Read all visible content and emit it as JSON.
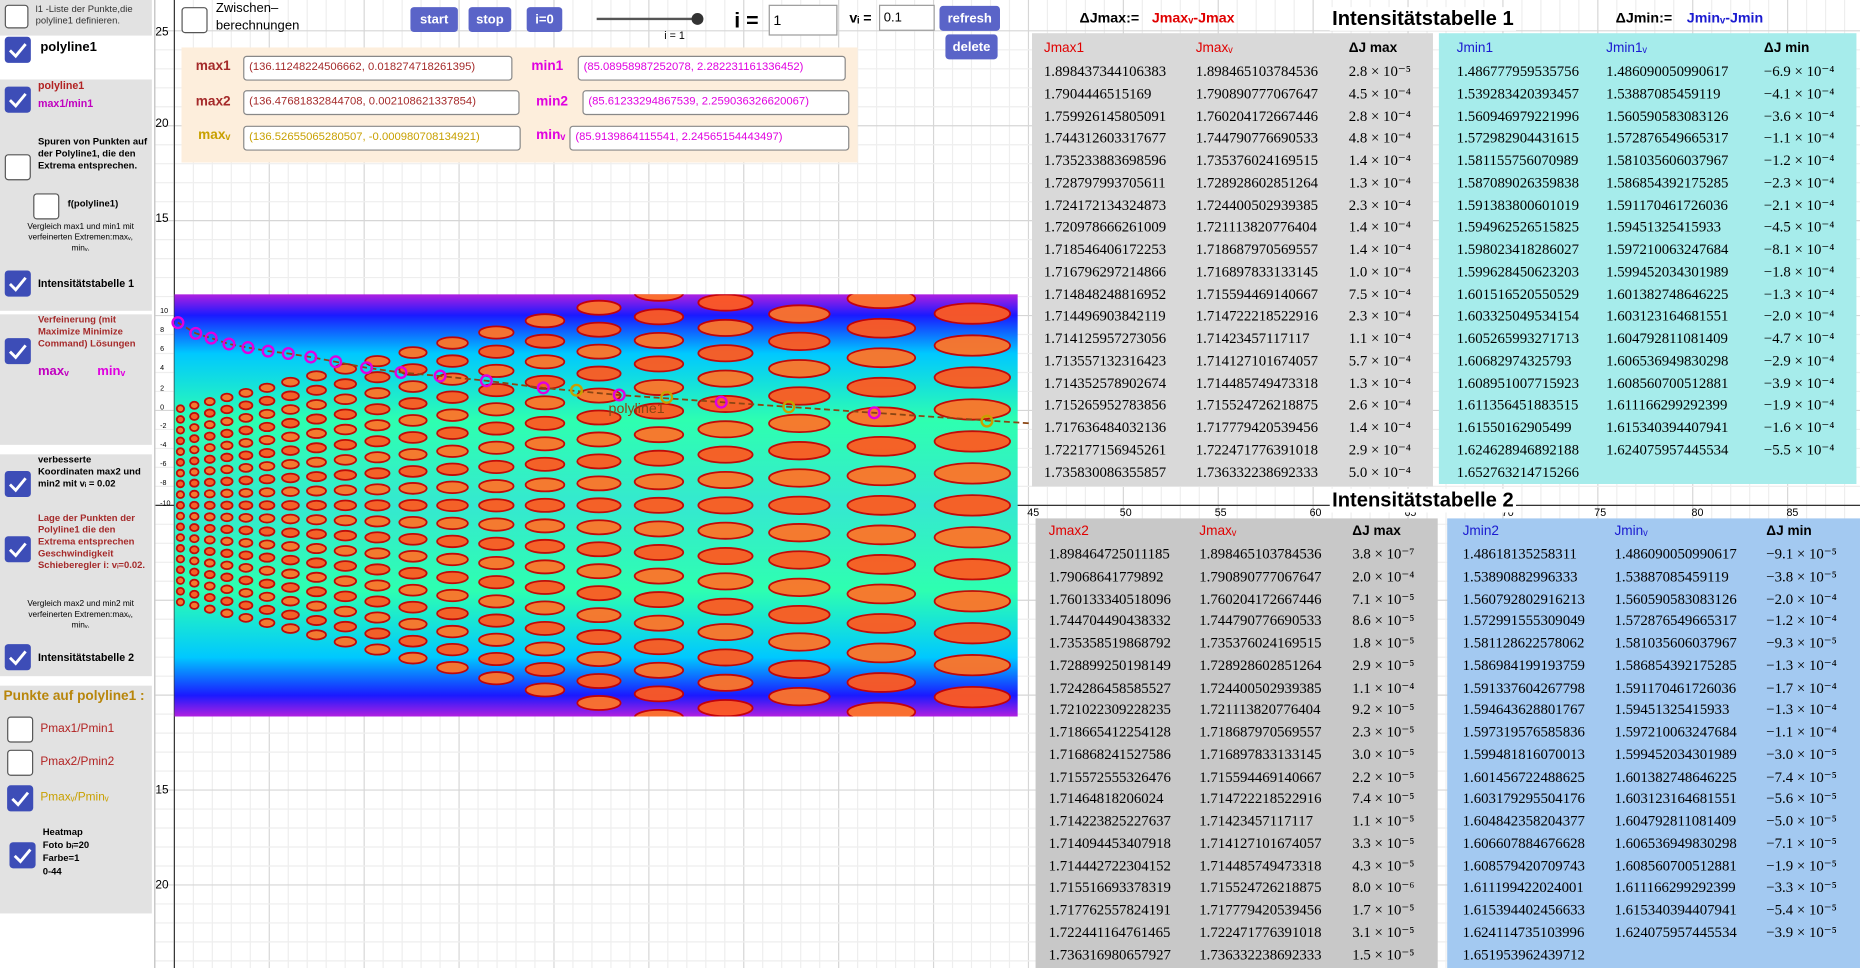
{
  "sidebar": {
    "l1_note": "l1 -Liste der Punkte,die polyline1 definieren.",
    "polyline1": "polyline1",
    "polyline1_b": "polyline1",
    "max1_min1": "max1/min1",
    "spuren": "Spuren von Punkten auf der Polyline1, die den Extrema entsprechen.",
    "f_polyline1": "f(polyline1)",
    "vergleich1": "Vergleich max1 und min1 mit verfeinerten Extremen:maxᵥ, minᵥ.",
    "table1": "Intensitätstabelle 1",
    "verfeinerung": "Verfeinerung (mit Maximize Minimize Command) Lösungen",
    "maxv": "maxᵥ",
    "minv": "minᵥ",
    "verbessert": "verbesserte Koordinaten max2 und min2 mit vᵢ = 0.02",
    "lage": "Lage der Punkten der Polyline1 die den Extrema entsprechen Geschwindigkeit Schieberegler i: vᵢ=0.02.",
    "vergleich2": "Vergleich max2 und min2 mit verfeinerten Extremen:maxᵥ, minᵥ.",
    "table2": "Intensitätstabelle 2",
    "punkte": "Punkte auf polyline1 :",
    "p1": "Pmax1/Pmin1",
    "p2": "Pmax2/Pmin2",
    "p3": "Pmaxᵥ/Pminᵥ",
    "heatmap": [
      "Heatmap",
      "Foto bᵢ=20",
      "Farbe=1",
      "0-44"
    ]
  },
  "toolbar": {
    "zwischen": [
      "Zwischen–",
      "berechnungen"
    ],
    "start": "start",
    "stop": "stop",
    "reset": "i=0",
    "slider": "i = 1",
    "i_label": "i =",
    "i_value": "1",
    "v_label": "vᵢ =",
    "v_value": "0.1",
    "refresh": "refresh",
    "delete": "delete"
  },
  "points": [
    {
      "label": "max1",
      "value": "(136.11248224506662, 0.018274718261395)"
    },
    {
      "label": "min1",
      "value": "(85.08958987252078, 2.282231161336452)"
    },
    {
      "label": "max2",
      "value": "(136.47681832844708, 0.002108621337854)"
    },
    {
      "label": "min2",
      "value": "(85.61233294867539, 2.259036326620067)"
    },
    {
      "label": "maxᵥ",
      "value": "(136.52655065280507, -0.000980708134921)"
    },
    {
      "label": "minᵥ",
      "value": "(85.9139864115541, 2.24565154443497)"
    }
  ],
  "graphics": {
    "y_top": [
      25,
      20,
      15
    ],
    "y_bottom": [
      15,
      20
    ],
    "x_mid": [
      45,
      50,
      55,
      60,
      65,
      70,
      75,
      80,
      85
    ],
    "heatmap_y": [
      10,
      8,
      6,
      4,
      2,
      0,
      -2,
      -4,
      -6,
      -8,
      -10
    ],
    "curve_label": "polyline1"
  },
  "definitions": {
    "max_a": "ΔJmax:=",
    "max_b": "Jmaxᵥ-Jmax",
    "min_a": "ΔJmin:=",
    "min_b": "Jminᵥ-Jmin"
  },
  "tables": [
    {
      "title": "Intensitätstabelle 1",
      "left": {
        "header": [
          "Jmax1",
          "Jmaxᵥ",
          "ΔJ max"
        ],
        "rows": [
          [
            "1.898437344106383",
            "1.898465103784536",
            "2.8 × 10⁻⁵"
          ],
          [
            "1.7904446515169",
            "1.790890777067647",
            "4.5 × 10⁻⁴"
          ],
          [
            "1.759926145805091",
            "1.760204172667446",
            "2.8 × 10⁻⁴"
          ],
          [
            "1.744312603317677",
            "1.744790776690533",
            "4.8 × 10⁻⁴"
          ],
          [
            "1.735233883698596",
            "1.735376024169515",
            "1.4 × 10⁻⁴"
          ],
          [
            "1.728797993705611",
            "1.728928602851264",
            "1.3 × 10⁻⁴"
          ],
          [
            "1.724172134324873",
            "1.724400502939385",
            "2.3 × 10⁻⁴"
          ],
          [
            "1.720978666261009",
            "1.721113820776404",
            "1.4 × 10⁻⁴"
          ],
          [
            "1.718546406172253",
            "1.718687970569557",
            "1.4 × 10⁻⁴"
          ],
          [
            "1.716796297214866",
            "1.716897833133145",
            "1.0 × 10⁻⁴"
          ],
          [
            "1.714848248816952",
            "1.715594469140667",
            "7.5 × 10⁻⁴"
          ],
          [
            "1.714496903842119",
            "1.714722218522916",
            "2.3 × 10⁻⁴"
          ],
          [
            "1.714125957273056",
            "1.71423457117117",
            "1.1 × 10⁻⁴"
          ],
          [
            "1.713557132316423",
            "1.714127101674057",
            "5.7 × 10⁻⁴"
          ],
          [
            "1.714352578902674",
            "1.714485749473318",
            "1.3 × 10⁻⁴"
          ],
          [
            "1.715265952783856",
            "1.715524726218875",
            "2.6 × 10⁻⁴"
          ],
          [
            "1.717636484032136",
            "1.717779420539456",
            "1.4 × 10⁻⁴"
          ],
          [
            "1.722177156945261",
            "1.722471776391018",
            "2.9 × 10⁻⁴"
          ],
          [
            "1.735830086355857",
            "1.736332238692333",
            "5.0 × 10⁻⁴"
          ]
        ]
      },
      "right": {
        "header": [
          "Jmin1",
          "Jmin1ᵥ",
          "ΔJ min"
        ],
        "rows": [
          [
            "1.486777959535756",
            "1.486090050990617",
            "−6.9 × 10⁻⁴"
          ],
          [
            "1.539283420393457",
            "1.53887085459119",
            "−4.1 × 10⁻⁴"
          ],
          [
            "1.560946979221996",
            "1.560590583083126",
            "−3.6 × 10⁻⁴"
          ],
          [
            "1.572982904431615",
            "1.572876549665317",
            "−1.1 × 10⁻⁴"
          ],
          [
            "1.581155756070989",
            "1.581035606037967",
            "−1.2 × 10⁻⁴"
          ],
          [
            "1.587089026359838",
            "1.586854392175285",
            "−2.3 × 10⁻⁴"
          ],
          [
            "1.591383800601019",
            "1.591170461726036",
            "−2.1 × 10⁻⁴"
          ],
          [
            "1.594962526515825",
            "1.59451325415933",
            "−4.5 × 10⁻⁴"
          ],
          [
            "1.598023418286027",
            "1.597210063247684",
            "−8.1 × 10⁻⁴"
          ],
          [
            "1.599628450623203",
            "1.599452034301989",
            "−1.8 × 10⁻⁴"
          ],
          [
            "1.601516520550529",
            "1.601382748646225",
            "−1.3 × 10⁻⁴"
          ],
          [
            "1.603325049534154",
            "1.603123164681551",
            "−2.0 × 10⁻⁴"
          ],
          [
            "1.605265993271713",
            "1.604792811081409",
            "−4.7 × 10⁻⁴"
          ],
          [
            "1.60682974325793",
            "1.606536949830298",
            "−2.9 × 10⁻⁴"
          ],
          [
            "1.608951007715923",
            "1.608560700512881",
            "−3.9 × 10⁻⁴"
          ],
          [
            "1.611356451883515",
            "1.611166299292399",
            "−1.9 × 10⁻⁴"
          ],
          [
            "1.61550162905499",
            "1.615340394407941",
            "−1.6 × 10⁻⁴"
          ],
          [
            "1.624628946892188",
            "1.624075957445534",
            "−5.5 × 10⁻⁴"
          ],
          [
            "1.652763214715266"
          ]
        ]
      }
    },
    {
      "title": "Intensitätstabelle 2",
      "left": {
        "header": [
          "Jmax2",
          "Jmaxᵥ",
          "ΔJ max"
        ],
        "rows": [
          [
            "1.898464725011185",
            "1.898465103784536",
            "3.8 × 10⁻⁷"
          ],
          [
            "1.79068641779892",
            "1.790890777067647",
            "2.0 × 10⁻⁴"
          ],
          [
            "1.760133340518096",
            "1.760204172667446",
            "7.1 × 10⁻⁵"
          ],
          [
            "1.744704490438332",
            "1.744790776690533",
            "8.6 × 10⁻⁵"
          ],
          [
            "1.735358519868792",
            "1.735376024169515",
            "1.8 × 10⁻⁵"
          ],
          [
            "1.728899250198149",
            "1.728928602851264",
            "2.9 × 10⁻⁵"
          ],
          [
            "1.724286458585527",
            "1.724400502939385",
            "1.1 × 10⁻⁴"
          ],
          [
            "1.721022309228235",
            "1.721113820776404",
            "9.2 × 10⁻⁵"
          ],
          [
            "1.718665412254128",
            "1.718687970569557",
            "2.3 × 10⁻⁵"
          ],
          [
            "1.716868241527586",
            "1.716897833133145",
            "3.0 × 10⁻⁵"
          ],
          [
            "1.715572555326476",
            "1.715594469140667",
            "2.2 × 10⁻⁵"
          ],
          [
            "1.71464818206024",
            "1.714722218522916",
            "7.4 × 10⁻⁵"
          ],
          [
            "1.714223825227637",
            "1.71423457117117",
            "1.1 × 10⁻⁵"
          ],
          [
            "1.714094453407918",
            "1.714127101674057",
            "3.3 × 10⁻⁵"
          ],
          [
            "1.714442722304152",
            "1.714485749473318",
            "4.3 × 10⁻⁵"
          ],
          [
            "1.715516693378319",
            "1.715524726218875",
            "8.0 × 10⁻⁶"
          ],
          [
            "1.717762557824191",
            "1.717779420539456",
            "1.7 × 10⁻⁵"
          ],
          [
            "1.722441164761465",
            "1.722471776391018",
            "3.1 × 10⁻⁵"
          ],
          [
            "1.736316980657927",
            "1.736332238692333",
            "1.5 × 10⁻⁵"
          ]
        ]
      },
      "right": {
        "header": [
          "Jmin2",
          "Jminᵥ",
          "ΔJ min"
        ],
        "rows": [
          [
            "1.48618135258311",
            "1.486090050990617",
            "−9.1 × 10⁻⁵"
          ],
          [
            "1.53890882996333",
            "1.53887085459119",
            "−3.8 × 10⁻⁵"
          ],
          [
            "1.560792802916213",
            "1.560590583083126",
            "−2.0 × 10⁻⁴"
          ],
          [
            "1.572991555309049",
            "1.572876549665317",
            "−1.2 × 10⁻⁴"
          ],
          [
            "1.581128622578062",
            "1.581035606037967",
            "−9.3 × 10⁻⁵"
          ],
          [
            "1.586984199193759",
            "1.586854392175285",
            "−1.3 × 10⁻⁴"
          ],
          [
            "1.591337604267798",
            "1.591170461726036",
            "−1.7 × 10⁻⁴"
          ],
          [
            "1.594643628801767",
            "1.59451325415933",
            "−1.3 × 10⁻⁴"
          ],
          [
            "1.597319576585836",
            "1.597210063247684",
            "−1.1 × 10⁻⁴"
          ],
          [
            "1.599481816070013",
            "1.599452034301989",
            "−3.0 × 10⁻⁵"
          ],
          [
            "1.601456722488625",
            "1.601382748646225",
            "−7.4 × 10⁻⁵"
          ],
          [
            "1.603179295504176",
            "1.603123164681551",
            "−5.6 × 10⁻⁵"
          ],
          [
            "1.604842358204377",
            "1.604792811081409",
            "−5.0 × 10⁻⁵"
          ],
          [
            "1.606607884676628",
            "1.606536949830298",
            "−7.1 × 10⁻⁵"
          ],
          [
            "1.608579420709743",
            "1.608560700512881",
            "−1.9 × 10⁻⁵"
          ],
          [
            "1.611199422024001",
            "1.611166299292399",
            "−3.3 × 10⁻⁵"
          ],
          [
            "1.615394402456633",
            "1.615340394407941",
            "−5.4 × 10⁻⁵"
          ],
          [
            "1.624114735103996",
            "1.624075957445534",
            "−3.9 × 10⁻⁵"
          ],
          [
            "1.651953962439712"
          ]
        ]
      }
    }
  ]
}
